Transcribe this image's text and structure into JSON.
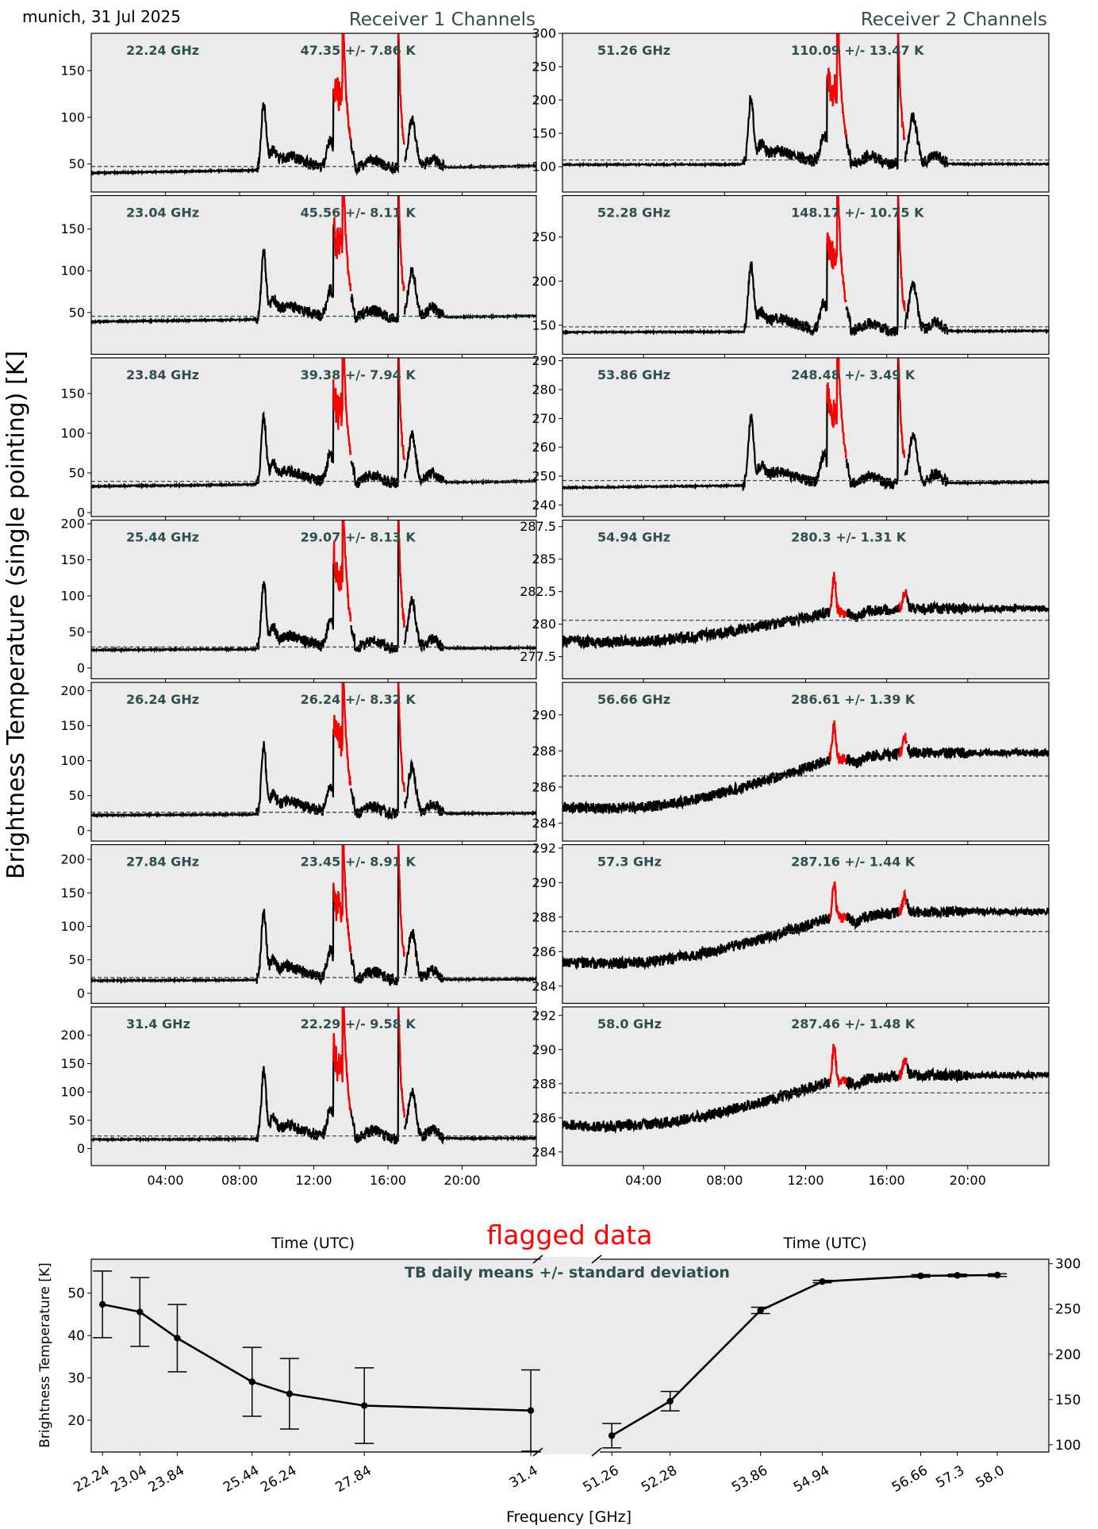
{
  "header": {
    "date_text": "munich, 31 Jul 2025",
    "receiver1_title": "Receiver 1 Channels",
    "receiver2_title": "Receiver 2 Channels",
    "ylabel": "Brightness Temperature (single pointing) [K]",
    "xlabel": "Time (UTC)",
    "flagged_text": "flagged data"
  },
  "colors": {
    "panel_background": "#ebebeb",
    "data_line": "#000000",
    "flagged_line": "#ff0000",
    "label_text": "#2f4f4f"
  },
  "time_ticks": [
    "04:00",
    "08:00",
    "12:00",
    "16:00",
    "20:00"
  ],
  "chart_data": [
    {
      "type": "line",
      "x_unit": "hours UTC",
      "xlim": [
        0,
        24
      ],
      "receivers": [
        {
          "title": "Receiver 1 Channels",
          "channels": [
            {
              "freq": "22.24 GHz",
              "stat": "47.35 +/- 7.86 K",
              "mean": 47.35,
              "ylim": [
                20,
                190
              ],
              "yticks": [
                50,
                100,
                150
              ],
              "base_start": 40.5,
              "base_end": 48,
              "features": "spikes"
            },
            {
              "freq": "23.04 GHz",
              "stat": "45.56 +/- 8.11 K",
              "mean": 45.56,
              "ylim": [
                0,
                190
              ],
              "yticks": [
                50,
                100,
                150
              ],
              "base_start": 39,
              "base_end": 46,
              "features": "spikes"
            },
            {
              "freq": "23.84 GHz",
              "stat": "39.38 +/- 7.94 K",
              "mean": 39.38,
              "ylim": [
                -5,
                195
              ],
              "yticks": [
                0,
                50,
                100,
                150
              ],
              "base_start": 33,
              "base_end": 39.5,
              "features": "spikes"
            },
            {
              "freq": "25.44 GHz",
              "stat": "29.07 +/- 8.13 K",
              "mean": 29.07,
              "ylim": [
                -15,
                205
              ],
              "yticks": [
                0,
                50,
                100,
                150,
                200
              ],
              "base_start": 25,
              "base_end": 28,
              "features": "spikes"
            },
            {
              "freq": "26.24 GHz",
              "stat": "26.24 +/- 8.32 K",
              "mean": 26.24,
              "ylim": [
                -15,
                212
              ],
              "yticks": [
                0,
                50,
                100,
                150,
                200
              ],
              "base_start": 22,
              "base_end": 25,
              "features": "spikes"
            },
            {
              "freq": "27.84 GHz",
              "stat": "23.45 +/- 8.91 K",
              "mean": 23.45,
              "ylim": [
                -15,
                222
              ],
              "yticks": [
                0,
                50,
                100,
                150,
                200
              ],
              "base_start": 19,
              "base_end": 21,
              "features": "spikes"
            },
            {
              "freq": "31.4 GHz",
              "stat": "22.29 +/- 9.58 K",
              "mean": 22.29,
              "ylim": [
                -30,
                250
              ],
              "yticks": [
                0,
                50,
                100,
                150,
                200
              ],
              "base_start": 16,
              "base_end": 18.5,
              "features": "spikes"
            }
          ]
        },
        {
          "title": "Receiver 2 Channels",
          "channels": [
            {
              "freq": "51.26 GHz",
              "stat": "110.09 +/- 13.47 K",
              "mean": 110.09,
              "ylim": [
                62,
                300
              ],
              "yticks": [
                100,
                150,
                200,
                250,
                300
              ],
              "base_start": 103,
              "base_end": 104,
              "features": "spikes"
            },
            {
              "freq": "52.28 GHz",
              "stat": "148.17 +/- 10.75 K",
              "mean": 148.17,
              "ylim": [
                117,
                297
              ],
              "yticks": [
                150,
                200,
                250
              ],
              "base_start": 142,
              "base_end": 143.5,
              "features": "spikes"
            },
            {
              "freq": "53.86 GHz",
              "stat": "248.48 +/- 3.49 K",
              "mean": 248.48,
              "ylim": [
                236,
                291
              ],
              "yticks": [
                240,
                250,
                260,
                270,
                280,
                290
              ],
              "base_start": 246,
              "base_end": 248,
              "features": "spikes"
            },
            {
              "freq": "54.94 GHz",
              "stat": "280.3 +/- 1.31 K",
              "mean": 280.3,
              "ylim": [
                275.8,
                288
              ],
              "yticks": [
                277.5,
                280.0,
                282.5,
                285.0,
                287.5
              ],
              "base_start": 278.7,
              "base_end": 281.2,
              "features": "trend"
            },
            {
              "freq": "56.66 GHz",
              "stat": "286.61 +/- 1.39 K",
              "mean": 286.61,
              "ylim": [
                283,
                291.8
              ],
              "yticks": [
                284,
                286,
                288,
                290
              ],
              "base_start": 284.9,
              "base_end": 287.9,
              "features": "trend"
            },
            {
              "freq": "57.3 GHz",
              "stat": "287.16 +/- 1.44 K",
              "mean": 287.16,
              "ylim": [
                283,
                292.2
              ],
              "yticks": [
                284,
                286,
                288,
                290,
                292
              ],
              "base_start": 285.4,
              "base_end": 288.3,
              "features": "trend"
            },
            {
              "freq": "58.0 GHz",
              "stat": "287.46 +/- 1.48 K",
              "mean": 287.46,
              "ylim": [
                283.2,
                292.5
              ],
              "yticks": [
                284,
                286,
                288,
                290,
                292
              ],
              "base_start": 285.6,
              "base_end": 288.5,
              "features": "trend"
            }
          ]
        }
      ]
    },
    {
      "type": "line",
      "title": "TB daily means +/- standard deviation",
      "xlabel": "Frequency [GHz]",
      "ylabel": "Brightness Temperature [K]",
      "left": {
        "categories": [
          "22.24",
          "23.04",
          "23.84",
          "25.44",
          "26.24",
          "27.84",
          "31.4"
        ],
        "x": [
          22.24,
          23.04,
          23.84,
          25.44,
          26.24,
          27.84,
          31.4
        ],
        "values": [
          47.35,
          45.56,
          39.38,
          29.07,
          26.24,
          23.45,
          22.29
        ],
        "errors": [
          7.86,
          8.11,
          7.94,
          8.13,
          8.32,
          8.91,
          9.58
        ],
        "xlim": [
          22.0,
          31.62
        ],
        "ylim": [
          12.5,
          58
        ],
        "yticks": [
          20,
          30,
          40,
          50
        ]
      },
      "right": {
        "categories": [
          "51.26",
          "52.28",
          "53.86",
          "54.94",
          "56.66",
          "57.3",
          "58.0"
        ],
        "x": [
          51.26,
          52.28,
          53.86,
          54.94,
          56.66,
          57.3,
          58.0
        ],
        "values": [
          110.09,
          148.17,
          248.48,
          280.3,
          286.61,
          287.16,
          287.46
        ],
        "errors": [
          13.47,
          10.75,
          3.49,
          1.31,
          1.39,
          1.44,
          1.48
        ],
        "xlim": [
          51.05,
          58.9
        ],
        "ylim": [
          92,
          305
        ],
        "yticks": [
          100,
          150,
          200,
          250,
          300
        ]
      }
    }
  ]
}
